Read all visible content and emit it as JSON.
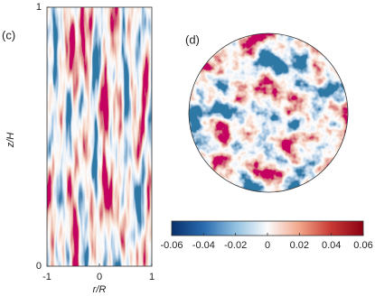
{
  "panels": [
    {
      "label": "(c)",
      "xlabel": "r/R",
      "ylabel": "z/H",
      "xlim": [
        -1,
        1
      ],
      "ylim": [
        0,
        1
      ],
      "xticks": [
        -1,
        0,
        1
      ],
      "yticks": [
        0,
        1
      ]
    },
    {
      "label": "(d)"
    }
  ],
  "colorbar": {
    "lim": [
      -0.06,
      0.06
    ],
    "ticks": [
      -0.06,
      -0.04,
      -0.02,
      0,
      0.02,
      0.04,
      0.06
    ]
  }
}
